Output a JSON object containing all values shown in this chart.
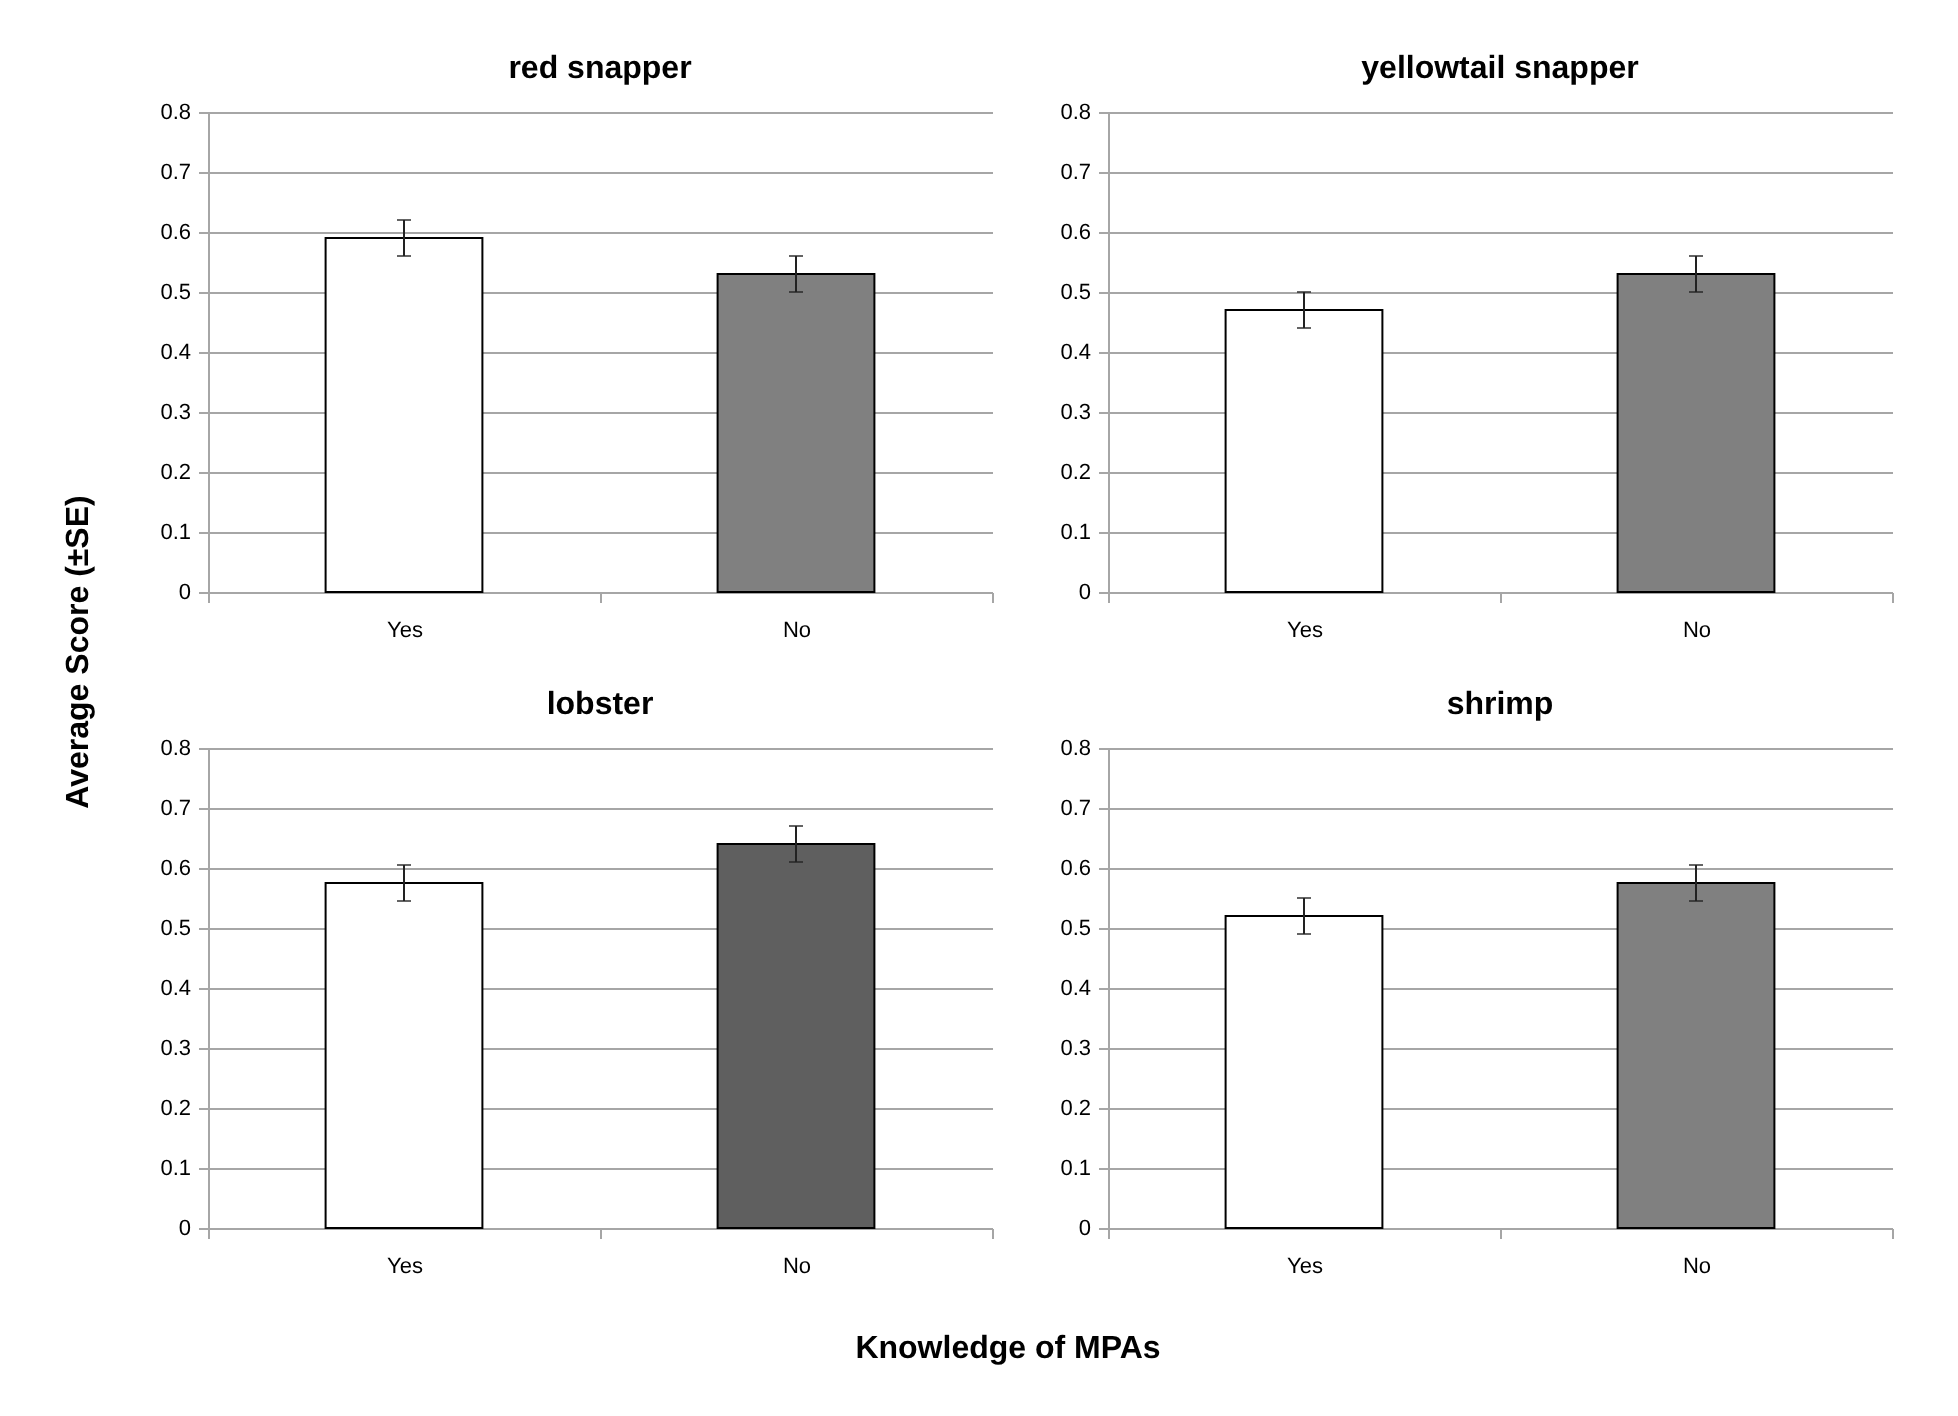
{
  "chart_data": [
    {
      "type": "bar",
      "title": "red snapper",
      "ylabel": "Average Score (±SE)",
      "categories": [
        "Yes",
        "No"
      ],
      "values": [
        0.59,
        0.53
      ],
      "errors": [
        0.03,
        0.03
      ],
      "colors": [
        "#ffffff",
        "#808080"
      ],
      "ylim": [
        0,
        0.8
      ],
      "yticks": [
        0,
        0.1,
        0.2,
        0.3,
        0.4,
        0.5,
        0.6,
        0.7,
        0.8
      ],
      "grid": "y"
    },
    {
      "type": "bar",
      "title": "yellowtail snapper",
      "categories": [
        "Yes",
        "No"
      ],
      "values": [
        0.47,
        0.53
      ],
      "errors": [
        0.03,
        0.03
      ],
      "colors": [
        "#ffffff",
        "#808080"
      ],
      "ylim": [
        0,
        0.8
      ],
      "yticks": [
        0,
        0.1,
        0.2,
        0.3,
        0.4,
        0.5,
        0.6,
        0.7,
        0.8
      ],
      "grid": "y"
    },
    {
      "type": "bar",
      "title": "lobster",
      "xlabel": "Knowledge of MPAs",
      "categories": [
        "Yes",
        "No"
      ],
      "values": [
        0.575,
        0.64
      ],
      "errors": [
        0.03,
        0.03
      ],
      "colors": [
        "#ffffff",
        "#5f5f5f"
      ],
      "ylim": [
        0,
        0.8
      ],
      "yticks": [
        0,
        0.1,
        0.2,
        0.3,
        0.4,
        0.5,
        0.6,
        0.7,
        0.8
      ],
      "grid": "y"
    },
    {
      "type": "bar",
      "title": "shrimp",
      "categories": [
        "Yes",
        "No"
      ],
      "values": [
        0.52,
        0.575
      ],
      "errors": [
        0.03,
        0.03
      ],
      "colors": [
        "#ffffff",
        "#808080"
      ],
      "ylim": [
        0,
        0.8
      ],
      "yticks": [
        0,
        0.1,
        0.2,
        0.3,
        0.4,
        0.5,
        0.6,
        0.7,
        0.8
      ],
      "grid": "y"
    }
  ]
}
